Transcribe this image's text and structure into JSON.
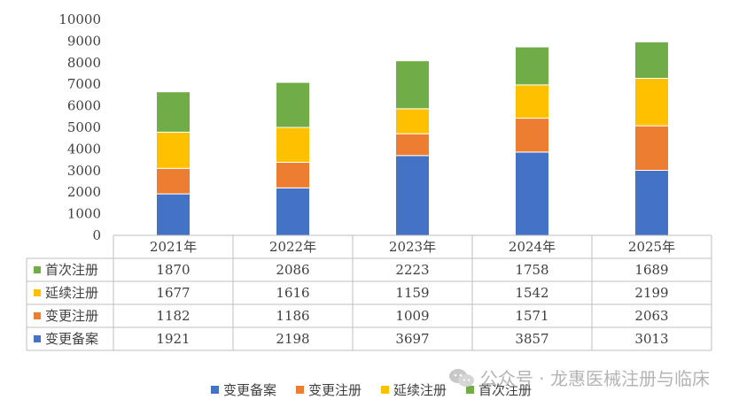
{
  "chart_data": {
    "type": "bar",
    "stacked": true,
    "categories": [
      "2021年",
      "2022年",
      "2023年",
      "2024年",
      "2025年"
    ],
    "series": [
      {
        "name": "变更备案",
        "color": "#4472C4",
        "values": [
          1921,
          2198,
          3697,
          3857,
          3013
        ]
      },
      {
        "name": "变更注册",
        "color": "#ED7D31",
        "values": [
          1182,
          1186,
          1009,
          1571,
          2063
        ]
      },
      {
        "name": "延续注册",
        "color": "#FFC000",
        "values": [
          1677,
          1616,
          1159,
          1542,
          2199
        ]
      },
      {
        "name": "首次注册",
        "color": "#70AD47",
        "values": [
          1870,
          2086,
          2223,
          1758,
          1689
        ]
      }
    ],
    "table_row_order": [
      "首次注册",
      "延续注册",
      "变更注册",
      "变更备案"
    ],
    "ylim": [
      0,
      10000
    ],
    "yticks": [
      0,
      1000,
      2000,
      3000,
      4000,
      5000,
      6000,
      7000,
      8000,
      9000,
      10000
    ],
    "grid": false,
    "legend_position": "bottom",
    "data_table": true
  },
  "watermark": {
    "icon": "wechat-icon",
    "text": "公众号 · 龙惠医械注册与临床"
  }
}
